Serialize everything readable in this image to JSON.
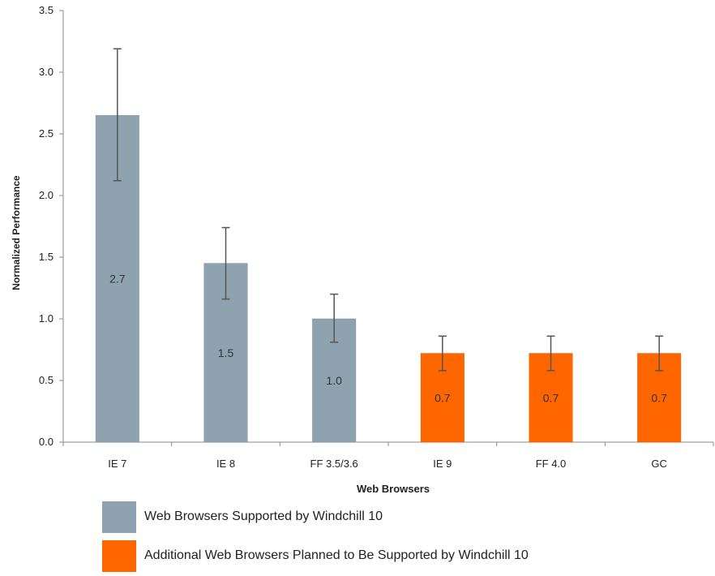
{
  "chart_data": {
    "type": "bar",
    "title": "",
    "xlabel": "Web Browsers",
    "ylabel": "Normalized Performance",
    "ylim": [
      0,
      3.5
    ],
    "yticks": [
      "0.0",
      "0.5",
      "1.0",
      "1.5",
      "2.0",
      "2.5",
      "3.0",
      "3.5"
    ],
    "categories": [
      "IE 7",
      "IE 8",
      "FF 3.5/3.6",
      "IE 9",
      "FF 4.0",
      "GC"
    ],
    "values": [
      2.65,
      1.45,
      1.0,
      0.72,
      0.72,
      0.72
    ],
    "data_labels": [
      "2.7",
      "1.5",
      "1.0",
      "0.7",
      "0.7",
      "0.7"
    ],
    "error_bars": [
      {
        "low": 2.12,
        "high": 3.19
      },
      {
        "low": 1.16,
        "high": 1.74
      },
      {
        "low": 0.81,
        "high": 1.2
      },
      {
        "low": 0.58,
        "high": 0.86
      },
      {
        "low": 0.58,
        "high": 0.86
      },
      {
        "low": 0.58,
        "high": 0.86
      }
    ],
    "bar_groups": [
      0,
      0,
      0,
      1,
      1,
      1
    ],
    "legend": [
      {
        "label": "Web Browsers Supported by Windchill 10",
        "color": "#8fa2b0"
      },
      {
        "label": "Additional Web Browsers Planned to Be Supported by Windchill 10",
        "color": "#ff6600"
      }
    ],
    "legend_position": "bottom",
    "grid": false
  }
}
